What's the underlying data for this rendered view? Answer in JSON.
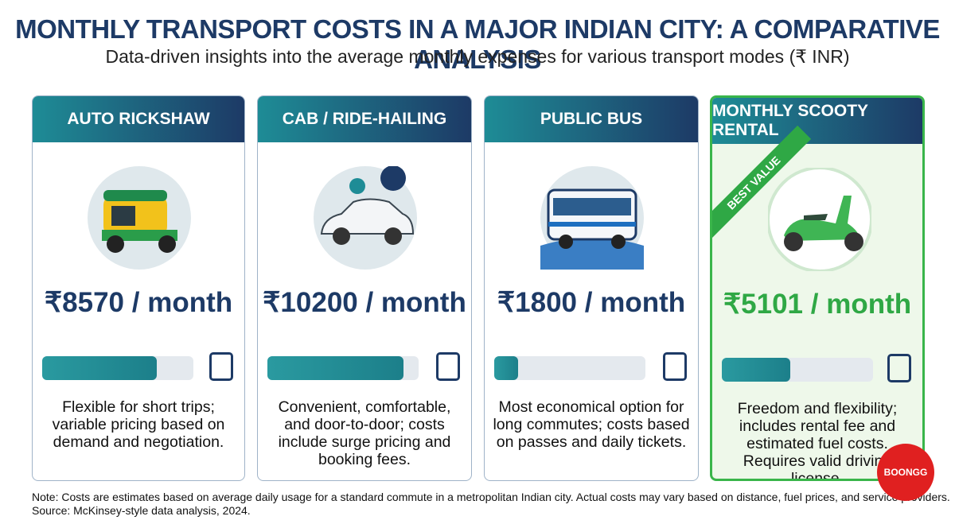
{
  "header": {
    "title": "MONTHLY TRANSPORT COSTS IN A MAJOR INDIAN CITY: A COMPARATIVE ANALYSIS",
    "subtitle": "Data-driven insights into the average monthly expenses for various transport modes (₹ INR)"
  },
  "cards": [
    {
      "name": "AUTO RICKSHAW",
      "cost": 8570,
      "cost_label": "₹8570 / month",
      "description": "Flexible for short trips; variable pricing based on demand and negotiation."
    },
    {
      "name": "CAB / RIDE-HAILING",
      "cost": 10200,
      "cost_label": "₹10200 / month",
      "description": "Convenient, comfortable, and door-to-door; costs include surge pricing and booking fees."
    },
    {
      "name": "PUBLIC BUS",
      "cost": 1800,
      "cost_label": "₹1800 / month",
      "description": "Most economical option for long commutes; costs based on passes and daily tickets."
    },
    {
      "name": "MONTHLY SCOOTY RENTAL",
      "cost": 5101,
      "cost_label": "₹5101 / month",
      "description": "Freedom and flexibility; includes rental fee and estimated fuel costs. Requires valid driving license.",
      "badge": "BEST VALUE"
    }
  ],
  "footer": {
    "note": "Note: Costs are estimates based on average daily usage for a standard commute in a metropolitan Indian city. Actual costs may vary based on distance, fuel prices, and service providers.",
    "source": "Source: McKinsey-style data analysis, 2024."
  },
  "logo": "BOONGG"
}
